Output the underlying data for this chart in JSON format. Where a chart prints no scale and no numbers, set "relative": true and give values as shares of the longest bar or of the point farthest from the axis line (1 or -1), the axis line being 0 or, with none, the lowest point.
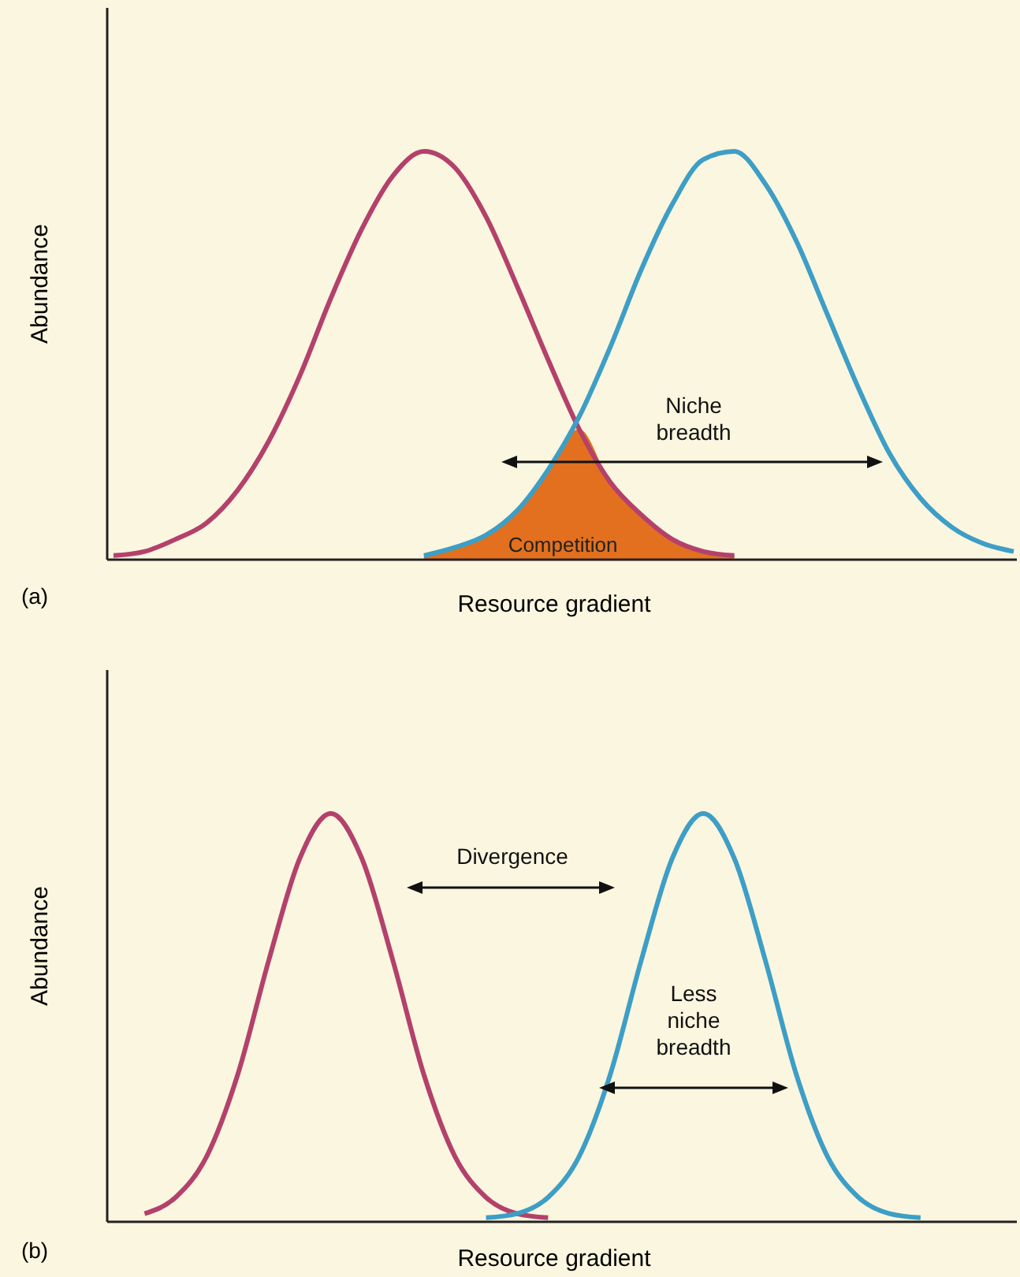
{
  "chart_data": [
    {
      "type": "line",
      "relative": true,
      "xlabel": "Resource gradient",
      "ylabel": "Abundance",
      "categories": [
        null,
        null,
        null,
        null,
        null,
        null,
        null,
        null,
        null,
        null,
        null,
        null,
        null,
        null,
        null,
        null,
        null,
        null,
        null,
        null,
        null,
        null,
        null,
        null,
        null,
        null,
        null,
        null,
        null,
        null
      ],
      "series": [
        {
          "type": "area",
          "name": "Competition",
          "color": "#e2701e",
          "values": [
            null,
            null,
            null,
            null,
            null,
            null,
            null,
            null,
            null,
            null,
            0.01,
            0.03,
            0.06,
            0.12,
            0.22,
            0.32,
            0.19,
            0.11,
            0.05,
            0.02,
            0.01,
            null,
            null,
            null,
            null,
            null,
            null,
            null,
            null,
            null
          ]
        },
        {
          "color": "#b3416c",
          "values": [
            0.01,
            0.02,
            0.05,
            0.09,
            0.17,
            0.29,
            0.45,
            0.64,
            0.81,
            0.94,
            1.0,
            0.96,
            0.84,
            0.67,
            0.49,
            0.32,
            0.19,
            0.11,
            0.05,
            0.02,
            0.01,
            null,
            null,
            null,
            null,
            null,
            null,
            null,
            null,
            null
          ]
        },
        {
          "color": "#3d9ec6",
          "values": [
            null,
            null,
            null,
            null,
            null,
            null,
            null,
            null,
            null,
            null,
            0.01,
            0.03,
            0.06,
            0.12,
            0.22,
            0.35,
            0.52,
            0.71,
            0.87,
            0.98,
            1.0,
            0.92,
            0.78,
            0.6,
            0.42,
            0.26,
            0.15,
            0.08,
            0.04,
            0.02
          ]
        }
      ],
      "annotations": [
        "(a)",
        "Niche breadth"
      ]
    },
    {
      "type": "line",
      "relative": true,
      "xlabel": "Resource gradient",
      "ylabel": "Abundance",
      "categories": [
        null,
        null,
        null,
        null,
        null,
        null,
        null,
        null,
        null,
        null,
        null,
        null,
        null,
        null,
        null,
        null,
        null,
        null,
        null,
        null,
        null,
        null,
        null,
        null,
        null,
        null,
        null,
        null,
        null,
        null
      ],
      "series": [
        {
          "color": "#b3416c",
          "values": [
            null,
            0.02,
            0.06,
            0.16,
            0.36,
            0.64,
            0.89,
            1.0,
            0.89,
            0.64,
            0.36,
            0.16,
            0.06,
            0.02,
            0.01,
            null,
            null,
            null,
            null,
            null,
            null,
            null,
            null,
            null,
            null,
            null,
            null,
            null,
            null,
            null
          ]
        },
        {
          "color": "#3d9ec6",
          "values": [
            null,
            null,
            null,
            null,
            null,
            null,
            null,
            null,
            null,
            null,
            null,
            null,
            0.01,
            0.02,
            0.06,
            0.16,
            0.36,
            0.64,
            0.89,
            1.0,
            0.89,
            0.64,
            0.36,
            0.16,
            0.06,
            0.02,
            0.01,
            null,
            null,
            null
          ]
        }
      ],
      "annotations": [
        "(b)",
        "Divergence",
        "Less niche breadth"
      ]
    }
  ]
}
